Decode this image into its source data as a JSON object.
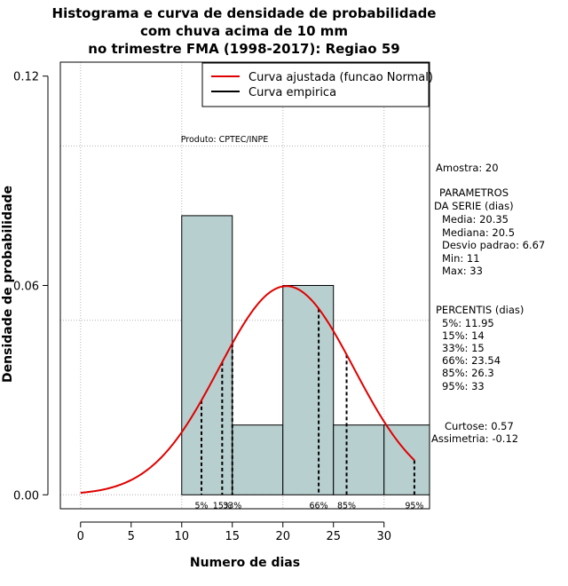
{
  "chart_data": {
    "type": "histogram",
    "title_lines": [
      "Histograma e curva de densidade de probabilidade",
      "com chuva acima de 10 mm",
      "no trimestre FMA (1998-2017): Regiao 59"
    ],
    "xlabel": "Numero de dias",
    "ylabel": "Densidade de probabilidade",
    "xlim": [
      -2,
      34.5
    ],
    "ylim": [
      -0.004,
      0.124
    ],
    "x_ticks": [
      0,
      5,
      10,
      15,
      20,
      25,
      30
    ],
    "x_tick_labels": [
      "0",
      "5",
      "10",
      "15",
      "20",
      "25",
      "30"
    ],
    "y_ticks": [
      0.0,
      0.06,
      0.12
    ],
    "y_tick_labels": [
      "0.00",
      "0.06",
      "0.12"
    ],
    "grid_x": [
      0,
      10,
      20,
      30
    ],
    "grid_y": [
      0.0,
      0.05,
      0.1
    ],
    "bins": [
      {
        "from": 10,
        "to": 15,
        "density": 0.08
      },
      {
        "from": 15,
        "to": 20,
        "density": 0.02
      },
      {
        "from": 20,
        "to": 25,
        "density": 0.06
      },
      {
        "from": 25,
        "to": 30,
        "density": 0.02
      },
      {
        "from": 30,
        "to": 35,
        "density": 0.02
      }
    ],
    "bar_color": "#b8cfcf",
    "curve": {
      "name": "Curva ajustada (funcao Normal)",
      "mean": 20.35,
      "sd": 6.67,
      "from": 0,
      "to": 33,
      "color": "#e00000"
    },
    "percentiles": [
      {
        "label": "5%",
        "value": 11.95
      },
      {
        "label": "15%",
        "value": 14
      },
      {
        "label": "33%",
        "value": 15
      },
      {
        "label": "66%",
        "value": 23.54
      },
      {
        "label": "85%",
        "value": 26.3
      },
      {
        "label": "95%",
        "value": 33
      }
    ],
    "legend": [
      {
        "label": "Curva ajustada (funcao Normal)",
        "color": "#e00000"
      },
      {
        "label": "Curva empirica",
        "color": "#000000"
      }
    ],
    "legend_position": "top-right",
    "product_label": "Produto: CPTEC/INPE",
    "side_panel": [
      "Amostra: 20",
      "PARAMETROS",
      "DA SERIE (dias)",
      "Media: 20.35",
      "Mediana: 20.5",
      "Desvio padrao: 6.67",
      "Min: 11",
      "Max: 33",
      "PERCENTIS (dias)",
      "5%: 11.95",
      "15%: 14",
      "33%: 15",
      "66%: 23.54",
      "85%: 26.3",
      "95%: 33",
      "Curtose: 0.57",
      "Assimetria: -0.12"
    ]
  }
}
